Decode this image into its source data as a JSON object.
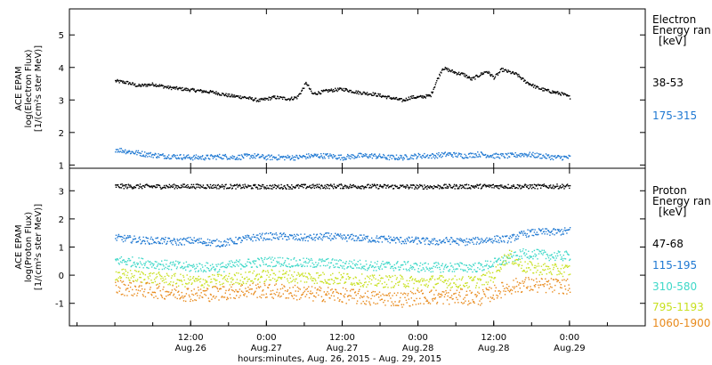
{
  "chart_data": [
    {
      "type": "scatter",
      "panel": "electron",
      "ylabel_lines": [
        "ACE EPAM",
        "log(Electron Flux)",
        "[1/(cm²s ster MeV)]"
      ],
      "ylim": [
        0.9,
        5.8
      ],
      "yticks": [
        1,
        2,
        3,
        4,
        5
      ],
      "legend_title": [
        "Electron",
        "Energy ran",
        "[keV]"
      ],
      "series": [
        {
          "name": "38-53",
          "color": "#000000",
          "x": [
            0.0,
            0.08,
            0.15,
            0.25,
            0.35,
            0.45,
            0.55,
            0.65,
            0.75,
            0.85,
            0.95,
            1.05,
            1.15,
            1.2,
            1.23,
            1.26,
            1.3,
            1.4,
            1.5,
            1.6,
            1.7,
            1.8,
            1.9,
            1.95,
            2.0,
            2.08,
            2.12,
            2.16,
            2.25,
            2.3,
            2.35,
            2.45,
            2.5,
            2.55,
            2.65,
            2.7,
            2.78,
            2.85,
            2.95,
            3.0
          ],
          "y": [
            3.6,
            3.55,
            3.45,
            3.5,
            3.4,
            3.35,
            3.3,
            3.25,
            3.15,
            3.1,
            3.0,
            3.1,
            3.05,
            3.1,
            3.3,
            3.55,
            3.2,
            3.3,
            3.35,
            3.25,
            3.2,
            3.1,
            3.0,
            3.1,
            3.1,
            3.15,
            3.6,
            4.0,
            3.85,
            3.8,
            3.65,
            3.9,
            3.7,
            3.95,
            3.8,
            3.6,
            3.4,
            3.3,
            3.2,
            3.1
          ]
        },
        {
          "name": "175-315",
          "color": "#1e78d2",
          "x": [
            0.0,
            0.1,
            0.2,
            0.3,
            0.4,
            0.5,
            0.6,
            0.7,
            0.8,
            0.9,
            1.0,
            1.1,
            1.2,
            1.3,
            1.4,
            1.5,
            1.6,
            1.7,
            1.8,
            1.9,
            2.0,
            2.1,
            2.2,
            2.3,
            2.4,
            2.5,
            2.6,
            2.7,
            2.8,
            2.9,
            3.0
          ],
          "y": [
            1.5,
            1.42,
            1.35,
            1.3,
            1.28,
            1.25,
            1.25,
            1.28,
            1.25,
            1.3,
            1.25,
            1.25,
            1.25,
            1.3,
            1.3,
            1.25,
            1.3,
            1.3,
            1.25,
            1.25,
            1.3,
            1.3,
            1.35,
            1.3,
            1.35,
            1.3,
            1.3,
            1.35,
            1.3,
            1.25,
            1.25
          ]
        }
      ]
    },
    {
      "type": "scatter",
      "panel": "proton",
      "ylabel_lines": [
        "ACE EPAM",
        "log(Proton Flux)",
        "[1/(cm²s ster MeV)]"
      ],
      "ylim": [
        -1.8,
        3.8
      ],
      "yticks": [
        -1,
        0,
        1,
        2,
        3
      ],
      "legend_title": [
        "Proton",
        "Energy ran",
        "[keV]"
      ],
      "series": [
        {
          "name": "47-68",
          "color": "#000000",
          "x": [
            0.0,
            0.25,
            0.5,
            0.75,
            1.0,
            1.25,
            1.5,
            1.75,
            2.0,
            2.25,
            2.5,
            2.75,
            3.0
          ],
          "y": [
            3.18,
            3.17,
            3.18,
            3.17,
            3.16,
            3.17,
            3.18,
            3.17,
            3.16,
            3.17,
            3.18,
            3.17,
            3.18
          ]
        },
        {
          "name": "115-195",
          "color": "#1e78d2",
          "x": [
            0.0,
            0.1,
            0.2,
            0.3,
            0.4,
            0.5,
            0.6,
            0.7,
            0.8,
            0.9,
            1.0,
            1.1,
            1.2,
            1.3,
            1.4,
            1.5,
            1.6,
            1.7,
            1.8,
            1.9,
            2.0,
            2.1,
            2.2,
            2.3,
            2.4,
            2.5,
            2.6,
            2.7,
            2.8,
            2.9,
            3.0
          ],
          "y": [
            1.35,
            1.3,
            1.25,
            1.25,
            1.2,
            1.25,
            1.2,
            1.15,
            1.25,
            1.35,
            1.4,
            1.4,
            1.35,
            1.35,
            1.4,
            1.35,
            1.35,
            1.3,
            1.3,
            1.25,
            1.25,
            1.2,
            1.25,
            1.2,
            1.25,
            1.3,
            1.3,
            1.5,
            1.55,
            1.55,
            1.6
          ]
        },
        {
          "name": "310-580",
          "color": "#3ed8c8",
          "x": [
            0.0,
            0.1,
            0.2,
            0.3,
            0.4,
            0.5,
            0.6,
            0.7,
            0.8,
            0.9,
            1.0,
            1.1,
            1.2,
            1.3,
            1.4,
            1.5,
            1.6,
            1.7,
            1.8,
            1.9,
            2.0,
            2.1,
            2.2,
            2.3,
            2.4,
            2.5,
            2.6,
            2.7,
            2.8,
            2.9,
            3.0
          ],
          "y": [
            0.55,
            0.5,
            0.45,
            0.4,
            0.35,
            0.3,
            0.3,
            0.3,
            0.4,
            0.45,
            0.5,
            0.5,
            0.45,
            0.45,
            0.45,
            0.4,
            0.4,
            0.35,
            0.35,
            0.35,
            0.3,
            0.3,
            0.3,
            0.3,
            0.3,
            0.45,
            0.6,
            0.8,
            0.75,
            0.7,
            0.7
          ]
        },
        {
          "name": "795-1193",
          "color": "#c8e020",
          "x": [
            0.0,
            0.1,
            0.2,
            0.3,
            0.4,
            0.5,
            0.6,
            0.7,
            0.8,
            0.9,
            1.0,
            1.1,
            1.2,
            1.3,
            1.4,
            1.5,
            1.6,
            1.7,
            1.8,
            1.9,
            2.0,
            2.1,
            2.2,
            2.3,
            2.4,
            2.5,
            2.55,
            2.6,
            2.7,
            2.8,
            2.9,
            3.0
          ],
          "y": [
            0.05,
            0.0,
            -0.05,
            -0.1,
            -0.15,
            -0.2,
            -0.2,
            -0.15,
            -0.1,
            -0.05,
            0.0,
            0.0,
            -0.05,
            -0.05,
            -0.1,
            -0.1,
            -0.15,
            -0.2,
            -0.2,
            -0.2,
            -0.25,
            -0.2,
            -0.2,
            -0.25,
            -0.2,
            0.0,
            0.5,
            0.7,
            0.3,
            0.25,
            0.2,
            0.2
          ]
        },
        {
          "name": "1060-1900",
          "color": "#e88a1c",
          "x": [
            0.0,
            0.1,
            0.2,
            0.3,
            0.4,
            0.5,
            0.6,
            0.7,
            0.8,
            0.9,
            1.0,
            1.1,
            1.2,
            1.3,
            1.4,
            1.5,
            1.6,
            1.7,
            1.8,
            1.9,
            2.0,
            2.1,
            2.2,
            2.3,
            2.4,
            2.5,
            2.6,
            2.7,
            2.8,
            2.9,
            3.0
          ],
          "y": [
            -0.4,
            -0.45,
            -0.5,
            -0.55,
            -0.6,
            -0.65,
            -0.65,
            -0.6,
            -0.55,
            -0.5,
            -0.55,
            -0.55,
            -0.6,
            -0.65,
            -0.65,
            -0.7,
            -0.75,
            -0.8,
            -0.8,
            -0.85,
            -0.75,
            -0.75,
            -0.75,
            -0.75,
            -0.8,
            -0.6,
            -0.4,
            -0.3,
            -0.35,
            -0.35,
            -0.4
          ]
        }
      ]
    }
  ],
  "xaxis": {
    "ticks": [
      {
        "t": 0.5,
        "line1": "12:00",
        "line2": "Aug.26"
      },
      {
        "t": 1.0,
        "line1": "0:00",
        "line2": "Aug.27"
      },
      {
        "t": 1.5,
        "line1": "12:00",
        "line2": "Aug.27"
      },
      {
        "t": 2.0,
        "line1": "0:00",
        "line2": "Aug.28"
      },
      {
        "t": 2.5,
        "line1": "12:00",
        "line2": "Aug.28"
      },
      {
        "t": 3.0,
        "line1": "0:00",
        "line2": "Aug.29"
      }
    ],
    "range": [
      -0.3,
      3.5
    ],
    "caption": "hours:minutes, Aug. 26, 2015 - Aug. 29, 2015"
  }
}
